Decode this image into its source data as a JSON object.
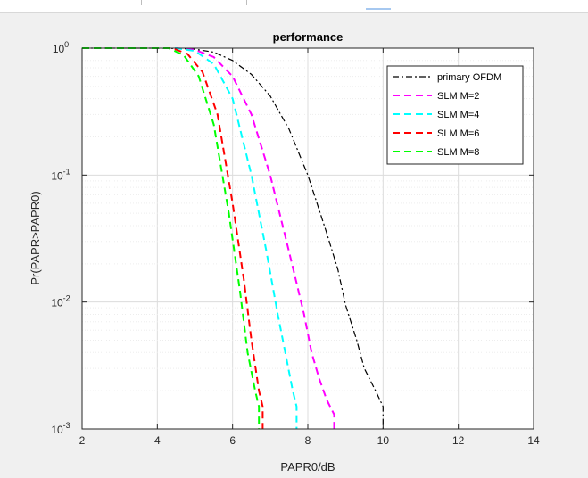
{
  "chart_data": {
    "type": "line",
    "title": "performance",
    "xlabel": "PAPR0/dB",
    "ylabel": "Pr(PAPR>PAPR0)",
    "xlim": [
      2,
      14
    ],
    "ylim": [
      0.001,
      1
    ],
    "yscale": "log",
    "grid": true,
    "legend_position": "top-right",
    "x_ticks": [
      "2",
      "4",
      "6",
      "8",
      "10",
      "12",
      "14"
    ],
    "y_ticks": [
      {
        "base": "10",
        "exp": "-3",
        "value": 0.001
      },
      {
        "base": "10",
        "exp": "-2",
        "value": 0.01
      },
      {
        "base": "10",
        "exp": "-1",
        "value": 0.1
      },
      {
        "base": "10",
        "exp": "0",
        "value": 1
      }
    ],
    "series": [
      {
        "name": "primary OFDM",
        "color": "#000000",
        "dash": "dashdot",
        "x": [
          2,
          4.0,
          4.5,
          5.0,
          5.5,
          6.0,
          6.5,
          7.0,
          7.5,
          8.0,
          8.5,
          8.8,
          9.0,
          9.3,
          9.5,
          9.8,
          10.0,
          10.0
        ],
        "y": [
          1,
          1,
          0.995,
          0.98,
          0.93,
          0.8,
          0.62,
          0.42,
          0.23,
          0.1,
          0.035,
          0.018,
          0.0095,
          0.005,
          0.003,
          0.002,
          0.0015,
          0.001
        ]
      },
      {
        "name": "SLM M=2",
        "color": "#ff00ff",
        "dash": "dashed",
        "x": [
          2,
          4.5,
          5.0,
          5.5,
          6.0,
          6.5,
          7.0,
          7.5,
          7.9,
          8.1,
          8.3,
          8.5,
          8.7,
          8.7
        ],
        "y": [
          1,
          1,
          0.97,
          0.85,
          0.6,
          0.3,
          0.1,
          0.025,
          0.008,
          0.004,
          0.0025,
          0.0017,
          0.0013,
          0.001
        ]
      },
      {
        "name": "SLM M=4",
        "color": "#00ffff",
        "dash": "dashed",
        "x": [
          2,
          4.5,
          5.0,
          5.5,
          6.0,
          6.5,
          6.9,
          7.2,
          7.4,
          7.6,
          7.7,
          7.7
        ],
        "y": [
          1,
          1,
          0.95,
          0.75,
          0.4,
          0.1,
          0.025,
          0.008,
          0.004,
          0.002,
          0.0015,
          0.001
        ]
      },
      {
        "name": "SLM M=6",
        "color": "#ff0000",
        "dash": "dashed",
        "x": [
          2,
          4.4,
          4.8,
          5.2,
          5.6,
          6.0,
          6.3,
          6.5,
          6.7,
          6.8,
          6.8
        ],
        "y": [
          1,
          1,
          0.9,
          0.65,
          0.3,
          0.06,
          0.015,
          0.005,
          0.002,
          0.0015,
          0.001
        ]
      },
      {
        "name": "SLM M=8",
        "color": "#00ff00",
        "dash": "dashed",
        "x": [
          2,
          4.3,
          4.7,
          5.1,
          5.5,
          5.9,
          6.2,
          6.4,
          6.6,
          6.7,
          6.7
        ],
        "y": [
          1,
          1,
          0.88,
          0.6,
          0.25,
          0.05,
          0.012,
          0.004,
          0.002,
          0.0015,
          0.001
        ]
      }
    ]
  }
}
